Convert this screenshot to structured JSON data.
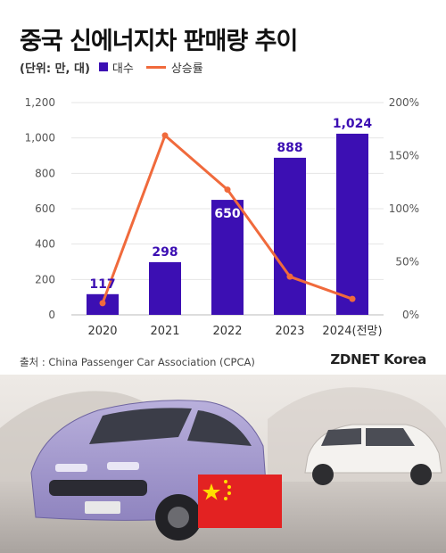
{
  "title": "중국 신에너지차 판매량 추이",
  "legend": {
    "unit": "(단위: 만, 대)",
    "bar_label": "대수",
    "line_label": "상승률"
  },
  "source": "출처 : China Passenger Car Association (CPCA)",
  "logo": "ZDNET Korea",
  "colors": {
    "bar": "#3c0fb3",
    "line": "#f06a3c",
    "bar_label_inside": "#ffffff",
    "bar_label_outside": "#3c0fb3"
  },
  "chart_data": {
    "type": "bar",
    "categories": [
      "2020",
      "2021",
      "2022",
      "2023",
      "2024(전망)"
    ],
    "series": [
      {
        "name": "대수",
        "type": "bar",
        "axis": "left",
        "values": [
          117,
          298,
          650,
          888,
          1024
        ],
        "labels": [
          "117",
          "298",
          "650",
          "888",
          "1,024"
        ]
      },
      {
        "name": "상승률",
        "type": "line",
        "axis": "right",
        "values": [
          11,
          169,
          118,
          36,
          15
        ]
      }
    ],
    "y_left": {
      "min": 0,
      "max": 1200,
      "ticks": [
        0,
        200,
        400,
        600,
        800,
        1000,
        1200
      ],
      "tick_labels": [
        "0",
        "200",
        "400",
        "600",
        "800",
        "1,000",
        "1,200"
      ]
    },
    "y_right": {
      "min": 0,
      "max": 200,
      "ticks": [
        0,
        50,
        100,
        150,
        200
      ],
      "tick_labels": [
        "0%",
        "50%",
        "100%",
        "150%",
        "200%"
      ]
    },
    "grid": true,
    "legend": "top-left"
  }
}
